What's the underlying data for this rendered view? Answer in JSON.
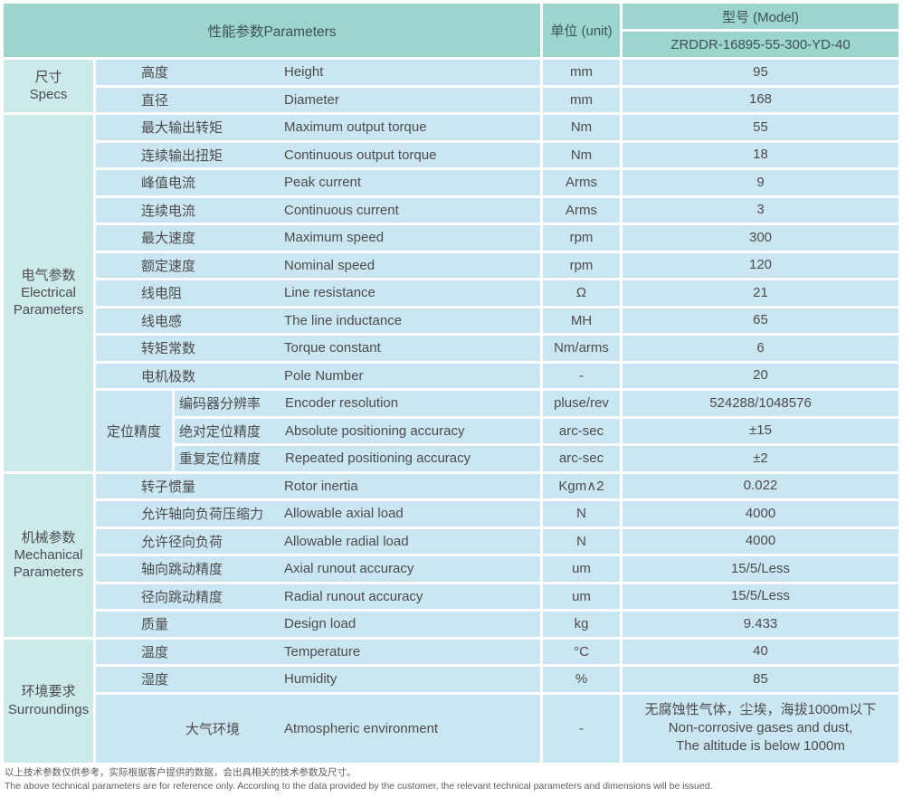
{
  "colors": {
    "header_teal": "#9bd5cd",
    "category_teal": "#cdeaea",
    "cell_blue": "#cae6f2",
    "text": "#4c4c4c"
  },
  "header": {
    "parameters_label": "性能参数Parameters",
    "unit_label": "单位 (unit)",
    "model_label": "型号 (Model)",
    "model_value": "ZRDDR-16895-55-300-YD-40"
  },
  "sections": [
    {
      "category": {
        "cn": "尺寸",
        "en": "Specs"
      },
      "rows": [
        {
          "cn": "高度",
          "en": "Height",
          "unit": "mm",
          "value": "95"
        },
        {
          "cn": "直径",
          "en": "Diameter",
          "unit": "mm",
          "value": "168"
        }
      ]
    },
    {
      "category": {
        "cn": "电气参数",
        "en": "Electrical Parameters"
      },
      "rows": [
        {
          "cn": "最大输出转矩",
          "en": "Maximum output torque",
          "unit": "Nm",
          "value": "55"
        },
        {
          "cn": "连续输出扭矩",
          "en": "Continuous output torque",
          "unit": "Nm",
          "value": "18"
        },
        {
          "cn": "峰值电流",
          "en": "Peak current",
          "unit": "Arms",
          "value": "9"
        },
        {
          "cn": "连续电流",
          "en": "Continuous current",
          "unit": "Arms",
          "value": "3"
        },
        {
          "cn": "最大速度",
          "en": "Maximum speed",
          "unit": "rpm",
          "value": "300"
        },
        {
          "cn": "额定速度",
          "en": "Nominal speed",
          "unit": "rpm",
          "value": "120"
        },
        {
          "cn": "线电阻",
          "en": "Line resistance",
          "unit": "Ω",
          "value": "21"
        },
        {
          "cn": "线电感",
          "en": "The line inductance",
          "unit": "MH",
          "value": "65"
        },
        {
          "cn": "转矩常数",
          "en": "Torque constant",
          "unit": "Nm/arms",
          "value": "6"
        },
        {
          "cn": "电机极数",
          "en": "Pole Number",
          "unit": "-",
          "value": "20"
        }
      ],
      "subgroup": {
        "label": "定位精度",
        "rows": [
          {
            "cn": "编码器分辨率",
            "en": "Encoder resolution",
            "unit": "pluse/rev",
            "value": "524288/1048576"
          },
          {
            "cn": "绝对定位精度",
            "en": "Absolute positioning accuracy",
            "unit": "arc-sec",
            "value": "±15"
          },
          {
            "cn": "重复定位精度",
            "en": "Repeated positioning accuracy",
            "unit": "arc-sec",
            "value": "±2"
          }
        ]
      }
    },
    {
      "category": {
        "cn": "机械参数",
        "en": "Mechanical Parameters"
      },
      "rows": [
        {
          "cn": "转子惯量",
          "en": "Rotor inertia",
          "unit": "Kgm∧2",
          "value": "0.022"
        },
        {
          "cn": "允许轴向负荷压缩力",
          "en": "Allowable axial load",
          "unit": "N",
          "value": "4000"
        },
        {
          "cn": "允许径向负荷",
          "en": "Allowable radial load",
          "unit": "N",
          "value": "4000"
        },
        {
          "cn": "轴向跳动精度",
          "en": "Axial runout accuracy",
          "unit": "um",
          "value": "15/5/Less"
        },
        {
          "cn": "径向跳动精度",
          "en": "Radial runout accuracy",
          "unit": "um",
          "value": "15/5/Less"
        },
        {
          "cn": "质量",
          "en": "Design load",
          "unit": "kg",
          "value": "9.433"
        }
      ]
    },
    {
      "category": {
        "cn": "环境要求",
        "en": "Surroundings"
      },
      "rows": [
        {
          "cn": "温度",
          "en": "Temperature",
          "unit": "°C",
          "value": "40"
        },
        {
          "cn": "湿度",
          "en": "Humidity",
          "unit": "%",
          "value": "85"
        },
        {
          "cn": "大气环境",
          "en": "Atmospheric environment",
          "unit": "-",
          "value": "无腐蚀性气体，尘埃，海拔1000m以下\nNon-corrosive gases and dust,\nThe altitude is below 1000m"
        }
      ]
    }
  ],
  "footer": {
    "line1_cn": "以上技术参数仅供参考，实际根据客户提供的数据，会出具相关的技术参数及尺寸。",
    "line2_en": "The above technical parameters are for reference only. According to the data provided by the customer, the relevant technical parameters and dimensions will be issued."
  }
}
